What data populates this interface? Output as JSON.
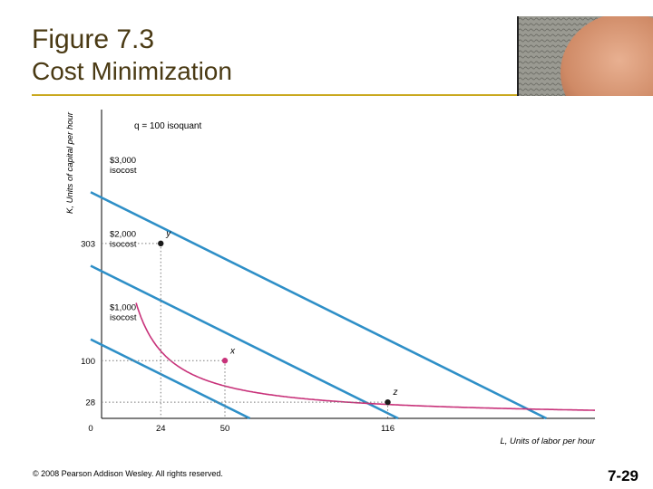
{
  "slide": {
    "title": "Figure 7.3",
    "subtitle": "Cost Minimization",
    "footer": "© 2008 Pearson Addison Wesley. All rights reserved.",
    "page_number": "7-29"
  },
  "colors": {
    "title": "#4a3a14",
    "rule": "#c9a81f",
    "isocost": "#2e8fc7",
    "isoquant": "#c8327a",
    "point": "#1a1a1a",
    "dotted": "#7a7a7a"
  },
  "chart_data": {
    "type": "line",
    "xlabel": "L, Units of labor per hour",
    "ylabel": "K, Units of capital per hour",
    "x_ticks": [
      0,
      24,
      50,
      116
    ],
    "y_ticks": [
      28,
      100,
      303
    ],
    "xlim": [
      0,
      200
    ],
    "ylim": [
      0,
      535
    ],
    "grid": false,
    "series": [
      {
        "name": "q = 100 isoquant",
        "kind": "isoquant",
        "k": 2800
      },
      {
        "name": "$3,000 isocost",
        "kind": "isocost",
        "line1": "$3,000",
        "line2": "isocost",
        "k_intercept": 382.5,
        "l_intercept": 180.3
      },
      {
        "name": "$2,000 isocost",
        "kind": "isocost",
        "line1": "$2,000",
        "line2": "isocost",
        "k_intercept": 255,
        "l_intercept": 120.2
      },
      {
        "name": "$1,000 isocost",
        "kind": "isocost",
        "line1": "$1,000",
        "line2": "isocost",
        "k_intercept": 127.5,
        "l_intercept": 60.1
      }
    ],
    "points": [
      {
        "label": "y",
        "L": 24,
        "K": 303
      },
      {
        "label": "x",
        "L": 50,
        "K": 100
      },
      {
        "label": "z",
        "L": 116,
        "K": 28
      }
    ]
  }
}
